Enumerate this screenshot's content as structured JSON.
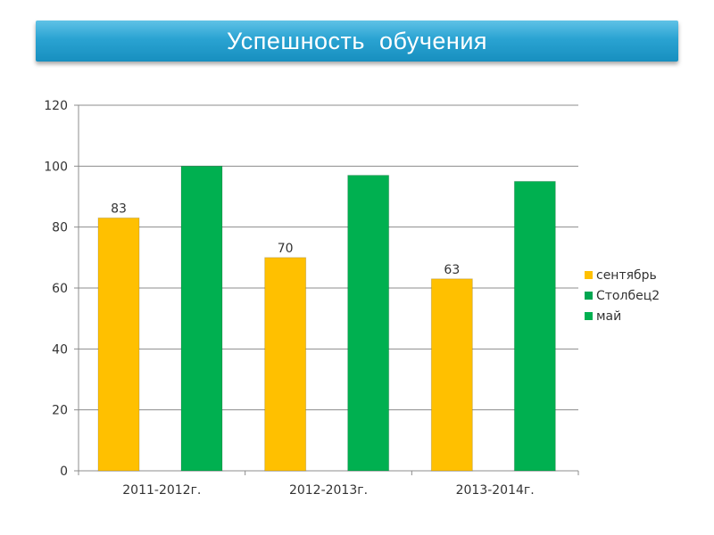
{
  "header": {
    "title": "Успешность  обучения"
  },
  "chart_data": {
    "type": "bar",
    "title": "Успешность  обучения",
    "categories": [
      "2011-2012г.",
      "2012-2013г.",
      "2013-2014г."
    ],
    "series": [
      {
        "name": "сентябрь",
        "values": [
          83,
          70,
          63
        ],
        "color": "#ffc000",
        "show_labels": true
      },
      {
        "name": "Столбец2",
        "values": [
          null,
          null,
          null
        ],
        "color": "#00a651",
        "show_labels": false
      },
      {
        "name": "май",
        "values": [
          100,
          97,
          95
        ],
        "color": "#00b050",
        "show_labels": false
      }
    ],
    "ylim": [
      0,
      120
    ],
    "yticks": [
      0,
      20,
      40,
      60,
      80,
      100,
      120
    ],
    "grid": true,
    "legend_position": "right"
  }
}
